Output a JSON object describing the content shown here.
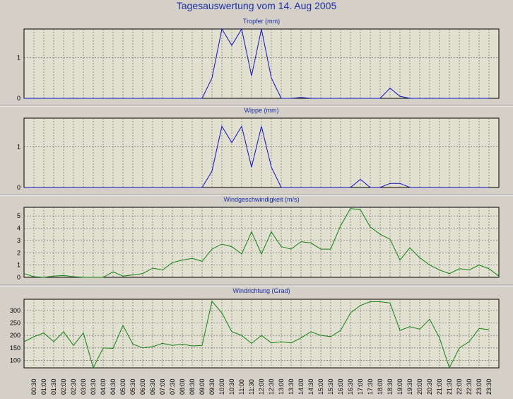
{
  "title": "Tagesauswertung vom 14. Aug 2005",
  "colors": {
    "background": "#d4d0c8",
    "plot_bg": "#e2e0d0",
    "blue_series": "#1010c0",
    "green_series": "#108010",
    "title": "#1c2fa8"
  },
  "chart_data": [
    {
      "type": "line",
      "title": "Tropfer (mm)",
      "ylim": [
        0,
        1.7
      ],
      "yticks": [
        0,
        1
      ],
      "x": [
        "00:00",
        "00:30",
        "01:00",
        "01:30",
        "02:00",
        "02:30",
        "03:00",
        "03:30",
        "04:00",
        "04:30",
        "05:00",
        "05:30",
        "06:00",
        "06:30",
        "07:00",
        "07:30",
        "08:00",
        "08:30",
        "09:00",
        "09:30",
        "10:00",
        "10:30",
        "11:00",
        "11:30",
        "12:00",
        "12:30",
        "13:00",
        "13:30",
        "14:00",
        "14:30",
        "15:00",
        "15:30",
        "16:00",
        "16:30",
        "17:00",
        "17:30",
        "18:00",
        "18:30",
        "19:00",
        "19:30",
        "20:00",
        "20:30",
        "21:00",
        "21:30",
        "22:00",
        "22:30",
        "23:00",
        "23:30"
      ],
      "values": [
        0,
        0,
        0,
        0,
        0,
        0,
        0,
        0,
        0,
        0,
        0,
        0,
        0,
        0,
        0,
        0,
        0,
        0,
        0,
        0.5,
        1.7,
        1.3,
        1.7,
        0.55,
        1.7,
        0.5,
        0,
        0,
        0.02,
        0,
        0,
        0,
        0,
        0,
        0,
        0,
        0,
        0.25,
        0.05,
        0,
        0,
        0,
        0,
        0,
        0,
        0,
        0,
        0
      ],
      "color": "#1010c0",
      "grid": true
    },
    {
      "type": "line",
      "title": "Wippe (mm)",
      "ylim": [
        0,
        1.7
      ],
      "yticks": [
        0,
        1
      ],
      "x": [
        "00:00",
        "00:30",
        "01:00",
        "01:30",
        "02:00",
        "02:30",
        "03:00",
        "03:30",
        "04:00",
        "04:30",
        "05:00",
        "05:30",
        "06:00",
        "06:30",
        "07:00",
        "07:30",
        "08:00",
        "08:30",
        "09:00",
        "09:30",
        "10:00",
        "10:30",
        "11:00",
        "11:30",
        "12:00",
        "12:30",
        "13:00",
        "13:30",
        "14:00",
        "14:30",
        "15:00",
        "15:30",
        "16:00",
        "16:30",
        "17:00",
        "17:30",
        "18:00",
        "18:30",
        "19:00",
        "19:30",
        "20:00",
        "20:30",
        "21:00",
        "21:30",
        "22:00",
        "22:30",
        "23:00",
        "23:30"
      ],
      "values": [
        0,
        0,
        0,
        0,
        0,
        0,
        0,
        0,
        0,
        0,
        0,
        0,
        0,
        0,
        0,
        0,
        0,
        0,
        0,
        0.4,
        1.5,
        1.1,
        1.5,
        0.5,
        1.5,
        0.5,
        0,
        0,
        0,
        0,
        0,
        0,
        0,
        0,
        0.2,
        0,
        0,
        0.1,
        0.1,
        0,
        0,
        0,
        0,
        0,
        0,
        0,
        0,
        0
      ],
      "color": "#1010c0",
      "grid": true
    },
    {
      "type": "line",
      "title": "Windgeschwindigkeit (m/s)",
      "ylim": [
        0,
        5.7
      ],
      "yticks": [
        0,
        1,
        2,
        3,
        4,
        5
      ],
      "x": [
        "00:00",
        "00:30",
        "01:00",
        "01:30",
        "02:00",
        "02:30",
        "03:00",
        "03:30",
        "04:00",
        "04:30",
        "05:00",
        "05:30",
        "06:00",
        "06:30",
        "07:00",
        "07:30",
        "08:00",
        "08:30",
        "09:00",
        "09:30",
        "10:00",
        "10:30",
        "11:00",
        "11:30",
        "12:00",
        "12:30",
        "13:00",
        "13:30",
        "14:00",
        "14:30",
        "15:00",
        "15:30",
        "16:00",
        "16:30",
        "17:00",
        "17:30",
        "18:00",
        "18:30",
        "19:00",
        "19:30",
        "20:00",
        "20:30",
        "21:00",
        "21:30",
        "22:00",
        "22:30",
        "23:00",
        "23:30",
        "24:00"
      ],
      "values": [
        0.3,
        0.05,
        0,
        0.1,
        0.15,
        0.05,
        0,
        0,
        0,
        0.45,
        0.1,
        0.2,
        0.3,
        0.75,
        0.6,
        1.2,
        1.4,
        1.55,
        1.3,
        2.3,
        2.7,
        2.5,
        1.9,
        3.7,
        1.9,
        3.7,
        2.5,
        2.3,
        2.9,
        2.8,
        2.3,
        2.3,
        4.2,
        5.6,
        5.5,
        4.1,
        3.5,
        3.1,
        1.4,
        2.4,
        1.6,
        1.0,
        0.6,
        0.3,
        0.7,
        0.6,
        1.0,
        0.7,
        0.1
      ],
      "color": "#108010",
      "grid": true
    },
    {
      "type": "line",
      "title": "Windrichtung (Grad)",
      "ylim": [
        70,
        345
      ],
      "yticks": [
        100,
        150,
        200,
        250,
        300
      ],
      "x": [
        "00:00",
        "00:30",
        "01:00",
        "01:30",
        "02:00",
        "02:30",
        "03:00",
        "03:30",
        "04:00",
        "04:30",
        "05:00",
        "05:30",
        "06:00",
        "06:30",
        "07:00",
        "07:30",
        "08:00",
        "08:30",
        "09:00",
        "09:30",
        "10:00",
        "10:30",
        "11:00",
        "11:30",
        "12:00",
        "12:30",
        "13:00",
        "13:30",
        "14:00",
        "14:30",
        "15:00",
        "15:30",
        "16:00",
        "16:30",
        "17:00",
        "17:30",
        "18:00",
        "18:30",
        "19:00",
        "19:30",
        "20:00",
        "20:30",
        "21:00",
        "21:30",
        "22:00",
        "22:30",
        "23:00",
        "23:30"
      ],
      "values": [
        175,
        195,
        210,
        175,
        215,
        160,
        210,
        70,
        150,
        148,
        240,
        165,
        150,
        155,
        168,
        160,
        165,
        158,
        160,
        337,
        290,
        215,
        200,
        168,
        200,
        170,
        175,
        170,
        190,
        215,
        200,
        195,
        220,
        290,
        320,
        335,
        335,
        330,
        220,
        235,
        225,
        265,
        190,
        70,
        150,
        175,
        228,
        223
      ],
      "color": "#108010",
      "grid": true
    }
  ],
  "x_tick_labels": [
    "00:30",
    "01:00",
    "01:30",
    "02:00",
    "02:30",
    "03:00",
    "03:30",
    "04:00",
    "04:30",
    "05:00",
    "05:30",
    "06:00",
    "06:30",
    "07:00",
    "07:30",
    "08:00",
    "08:30",
    "09:00",
    "09:30",
    "10:00",
    "10:30",
    "11:00",
    "11:30",
    "12:00",
    "12:30",
    "13:00",
    "13:30",
    "14:00",
    "14:30",
    "15:00",
    "15:30",
    "16:00",
    "16:30",
    "17:00",
    "17:30",
    "18:00",
    "18:30",
    "19:00",
    "19:30",
    "20:00",
    "20:30",
    "21:00",
    "21:30",
    "22:00",
    "22:30",
    "23:00",
    "23:30"
  ]
}
